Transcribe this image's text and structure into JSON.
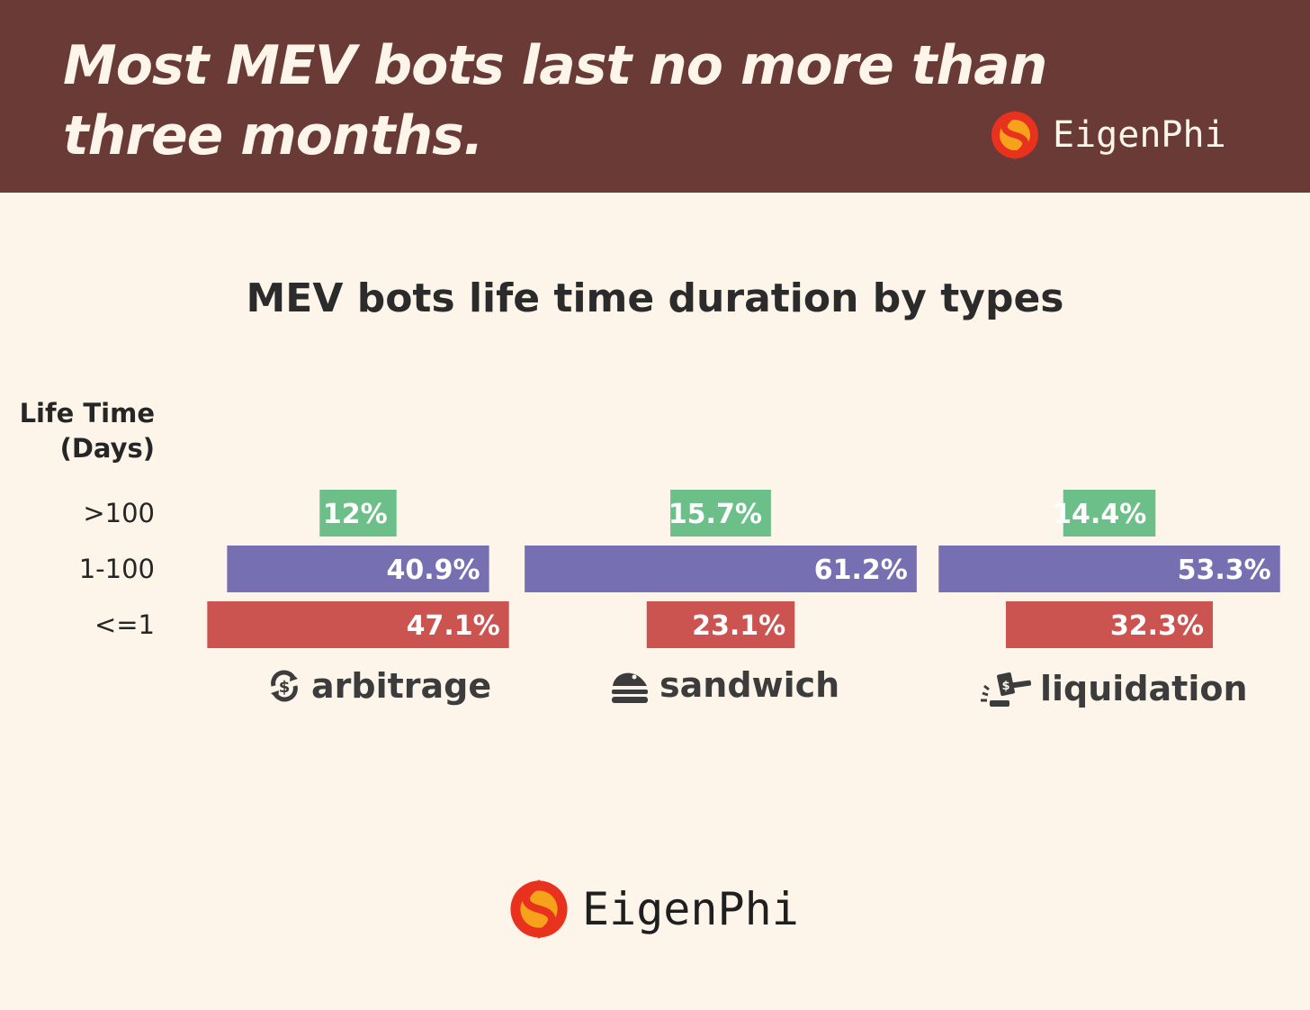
{
  "headline": "Most MEV bots last no more than three months.",
  "brand": {
    "name": "EigenPhi"
  },
  "colors": {
    "header_bg": "#6a3b36",
    "page_bg": "#fdf5ea",
    ">100": "#6cbf88",
    "1-100": "#7670b2",
    "<=1": "#cb5450"
  },
  "icons": {
    "arbitrage": "currency-exchange-icon",
    "sandwich": "sandwich-icon",
    "liquidation": "gavel-icon"
  },
  "chart_data": {
    "type": "bar",
    "title": "MEV bots life time duration by types",
    "ylabel_line1": "Life Time",
    "ylabel_line2": "(Days)",
    "categories": [
      ">100",
      "1-100",
      "<=1"
    ],
    "groups": [
      "arbitrage",
      "sandwich",
      "liquidation"
    ],
    "series": [
      {
        "name": "arbitrage",
        "values": [
          12,
          40.9,
          47.1
        ],
        "labels": [
          "12%",
          "40.9%",
          "47.1%"
        ]
      },
      {
        "name": "sandwich",
        "values": [
          15.7,
          61.2,
          23.1
        ],
        "labels": [
          "15.7%",
          "61.2%",
          "23.1%"
        ]
      },
      {
        "name": "liquidation",
        "values": [
          14.4,
          53.3,
          32.3
        ],
        "labels": [
          "14.4%",
          "53.3%",
          "32.3%"
        ]
      }
    ],
    "legend": "none",
    "grid": false
  }
}
